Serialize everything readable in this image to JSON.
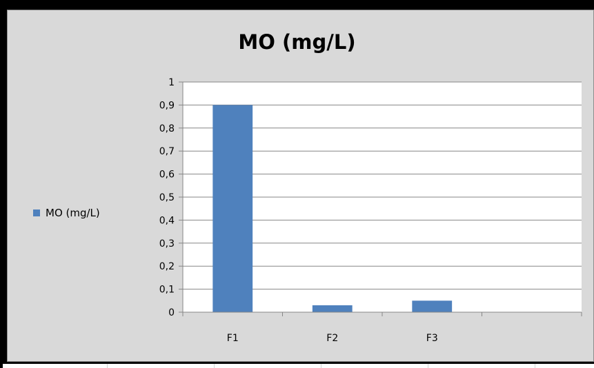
{
  "chart_data": {
    "type": "bar",
    "title": "MO (mg/L)",
    "categories": [
      "F1",
      "F2",
      "F3",
      ""
    ],
    "series": [
      {
        "name": "MO (mg/L)",
        "values": [
          0.9,
          0.03,
          0.05,
          null
        ],
        "color": "#4f81bd"
      }
    ],
    "ylim": [
      0,
      1
    ],
    "y_ticks": [
      "0",
      "0,1",
      "0,2",
      "0,3",
      "0,4",
      "0,5",
      "0,6",
      "0,7",
      "0,8",
      "0,9",
      "1"
    ],
    "grid": true,
    "legend_position": "left"
  }
}
